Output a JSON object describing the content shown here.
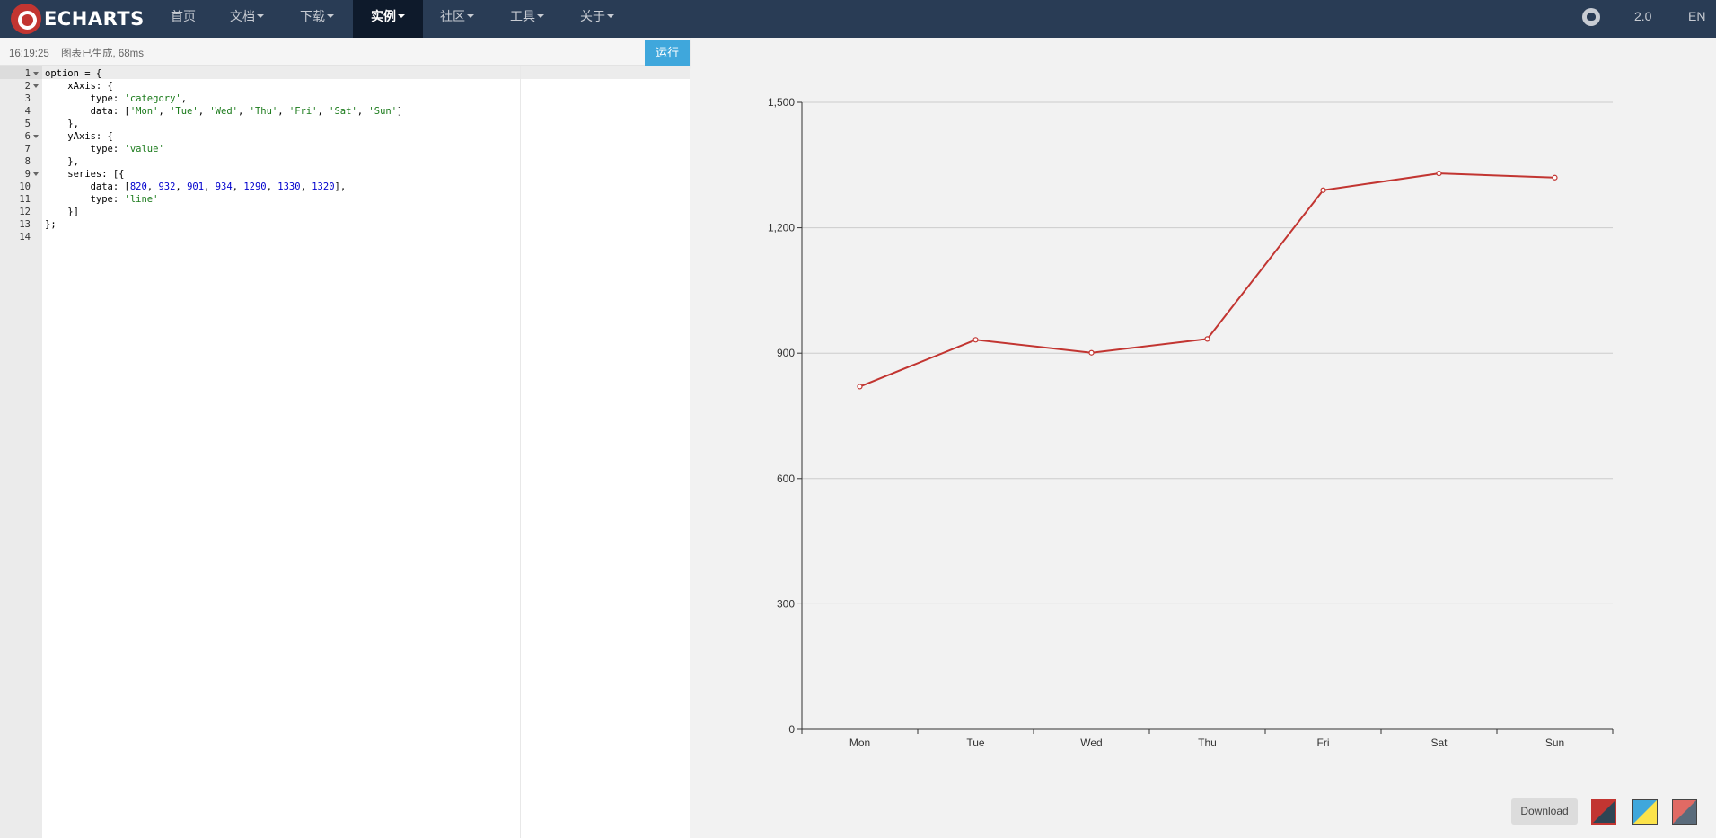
{
  "navbar": {
    "logo_text": "ECHARTS",
    "items": [
      {
        "label": "首页",
        "dropdown": false,
        "active": false
      },
      {
        "label": "文档",
        "dropdown": true,
        "active": false
      },
      {
        "label": "下载",
        "dropdown": true,
        "active": false
      },
      {
        "label": "实例",
        "dropdown": true,
        "active": true
      },
      {
        "label": "社区",
        "dropdown": true,
        "active": false
      },
      {
        "label": "工具",
        "dropdown": true,
        "active": false
      },
      {
        "label": "关于",
        "dropdown": true,
        "active": false
      }
    ],
    "github_icon": "github-icon",
    "version": "2.0",
    "lang": "EN"
  },
  "editor": {
    "status_time": "16:19:25",
    "status_message": "图表已生成, 68ms",
    "run_label": "运行",
    "line_numbers": [
      "1",
      "2",
      "3",
      "4",
      "5",
      "6",
      "7",
      "8",
      "9",
      "10",
      "11",
      "12",
      "13",
      "14"
    ],
    "fold_lines": [
      1,
      2,
      6,
      9
    ],
    "code": [
      [
        {
          "t": "option = {"
        }
      ],
      [
        {
          "t": "    xAxis: {"
        }
      ],
      [
        {
          "t": "        type: "
        },
        {
          "t": "'category'",
          "c": "str"
        },
        {
          "t": ","
        }
      ],
      [
        {
          "t": "        data: ["
        },
        {
          "t": "'Mon'",
          "c": "str"
        },
        {
          "t": ", "
        },
        {
          "t": "'Tue'",
          "c": "str"
        },
        {
          "t": ", "
        },
        {
          "t": "'Wed'",
          "c": "str"
        },
        {
          "t": ", "
        },
        {
          "t": "'Thu'",
          "c": "str"
        },
        {
          "t": ", "
        },
        {
          "t": "'Fri'",
          "c": "str"
        },
        {
          "t": ", "
        },
        {
          "t": "'Sat'",
          "c": "str"
        },
        {
          "t": ", "
        },
        {
          "t": "'Sun'",
          "c": "str"
        },
        {
          "t": "]"
        }
      ],
      [
        {
          "t": "    },"
        }
      ],
      [
        {
          "t": "    yAxis: {"
        }
      ],
      [
        {
          "t": "        type: "
        },
        {
          "t": "'value'",
          "c": "str"
        }
      ],
      [
        {
          "t": "    },"
        }
      ],
      [
        {
          "t": "    series: [{"
        }
      ],
      [
        {
          "t": "        data: ["
        },
        {
          "t": "820",
          "c": "num"
        },
        {
          "t": ", "
        },
        {
          "t": "932",
          "c": "num"
        },
        {
          "t": ", "
        },
        {
          "t": "901",
          "c": "num"
        },
        {
          "t": ", "
        },
        {
          "t": "934",
          "c": "num"
        },
        {
          "t": ", "
        },
        {
          "t": "1290",
          "c": "num"
        },
        {
          "t": ", "
        },
        {
          "t": "1330",
          "c": "num"
        },
        {
          "t": ", "
        },
        {
          "t": "1320",
          "c": "num"
        },
        {
          "t": "],"
        }
      ],
      [
        {
          "t": "        type: "
        },
        {
          "t": "'line'",
          "c": "str"
        }
      ],
      [
        {
          "t": "    }]"
        }
      ],
      [
        {
          "t": "};"
        }
      ],
      [
        {
          "t": ""
        }
      ]
    ]
  },
  "chart_data": {
    "type": "line",
    "categories": [
      "Mon",
      "Tue",
      "Wed",
      "Thu",
      "Fri",
      "Sat",
      "Sun"
    ],
    "series": [
      {
        "values": [
          820,
          932,
          901,
          934,
          1290,
          1330,
          1320
        ]
      }
    ],
    "yticks": [
      "0",
      "300",
      "600",
      "900",
      "1,200",
      "1,500"
    ],
    "ylim": [
      0,
      1500
    ],
    "title": "",
    "xlabel": "",
    "ylabel": "",
    "grid": true,
    "line_color": "#c23531"
  },
  "toolbox": {
    "download_label": "Download",
    "themes": [
      {
        "name": "theme-dark-red",
        "colors": [
          "#c23531",
          "#2f4554"
        ],
        "selected": true
      },
      {
        "name": "theme-blue-yellow",
        "colors": [
          "#3fa7dc",
          "#fce34b"
        ],
        "selected": false
      },
      {
        "name": "theme-red-gray",
        "colors": [
          "#e06a64",
          "#5a6b7b"
        ],
        "selected": false
      }
    ]
  }
}
